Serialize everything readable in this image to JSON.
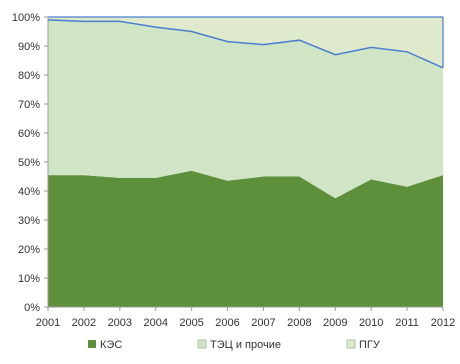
{
  "chart_data": {
    "type": "area",
    "stacked": true,
    "x": [
      "2001",
      "2002",
      "2003",
      "2004",
      "2005",
      "2006",
      "2007",
      "2008",
      "2009",
      "2010",
      "2011",
      "2012"
    ],
    "ylim": [
      0,
      100
    ],
    "yticks": [
      "0%",
      "10%",
      "20%",
      "30%",
      "40%",
      "50%",
      "60%",
      "70%",
      "80%",
      "90%",
      "100%"
    ],
    "grid": false,
    "legend_position": "bottom",
    "series": [
      {
        "name": "КЭС",
        "color": "#5e8f3a",
        "values": [
          45.5,
          45.5,
          44.5,
          44.5,
          47,
          43.5,
          45,
          45,
          37.5,
          44,
          41.5,
          45.5
        ]
      },
      {
        "name": "ТЭЦ и прочие",
        "color": "#cfe5c6",
        "values": [
          53.5,
          53,
          54,
          52,
          48,
          48,
          45.5,
          47,
          49.5,
          45.5,
          46.5,
          37
        ]
      },
      {
        "name": "ПГУ",
        "color": "#dfe9cb",
        "values": [
          1,
          1.5,
          1.5,
          3.5,
          5,
          8.5,
          9.5,
          8,
          13,
          10.5,
          12,
          17.5
        ]
      }
    ],
    "boundary_line_color": "#4a7fd0"
  }
}
